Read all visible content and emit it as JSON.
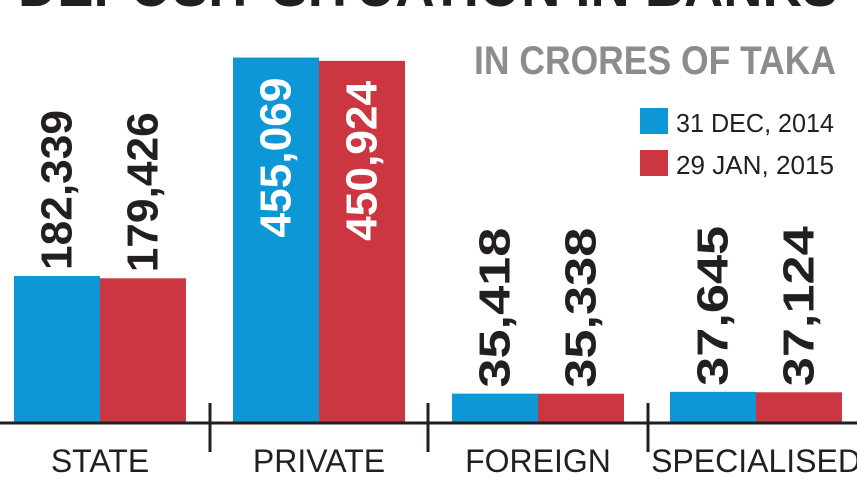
{
  "chart_data": {
    "type": "bar",
    "title": "DEPOSIT SITUATION IN BANKS",
    "subtitle": "IN CRORES OF TAKA",
    "categories": [
      "STATE",
      "PRIVATE",
      "FOREIGN",
      "SPECIALISED"
    ],
    "series": [
      {
        "name": "31 DEC, 2014",
        "values": [
          182339,
          455069,
          35418,
          37645
        ],
        "labels": [
          "182,339",
          "455,069",
          "35,418",
          "37,645"
        ]
      },
      {
        "name": "29 JAN, 2015",
        "values": [
          179426,
          450924,
          35338,
          37124
        ],
        "labels": [
          "179,426",
          "450,924",
          "35,338",
          "37,124"
        ]
      }
    ],
    "legend_position": "top-right",
    "ylim": [
      0,
      472000
    ],
    "grid": false
  },
  "colors": {
    "series_1": "#0d97d6",
    "series_2": "#cc3640",
    "text": "#231f20",
    "subtitle": "#8c8c8c",
    "axis": "#231f20"
  }
}
